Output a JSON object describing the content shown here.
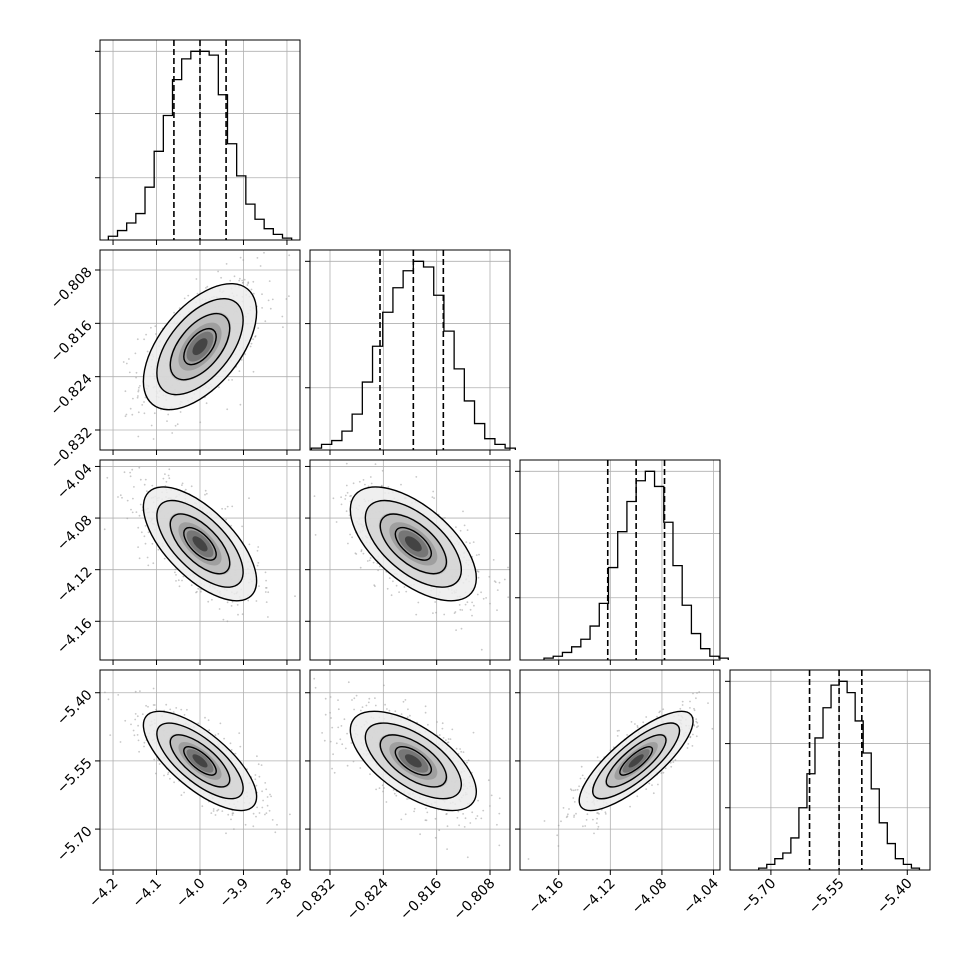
{
  "chart_data": {
    "type": "corner",
    "title": "",
    "parameters": [
      {
        "index": 0,
        "name": "",
        "range": [
          -4.23,
          -3.77
        ],
        "mean": -4.0,
        "sigma": 0.062,
        "quantiles": [
          -4.06,
          -4.0,
          -3.94
        ],
        "ticks": [
          -4.2,
          -4.1,
          -4.0,
          -3.9,
          -3.8
        ],
        "tick_labels": [
          "−4.2",
          "−4.1",
          "−4.0",
          "−3.9",
          "−3.8"
        ]
      },
      {
        "index": 1,
        "name": "",
        "range": [
          -0.835,
          -0.805
        ],
        "mean": -0.8195,
        "sigma": 0.0045,
        "quantiles": [
          -0.8245,
          -0.8195,
          -0.815
        ],
        "ticks": [
          -0.832,
          -0.824,
          -0.816,
          -0.808
        ],
        "tick_labels": [
          "−0.832",
          "−0.824",
          "−0.816",
          "−0.808"
        ]
      },
      {
        "index": 2,
        "name": "",
        "range": [
          -4.19,
          -4.035
        ],
        "mean": -4.1,
        "sigma": 0.021,
        "quantiles": [
          -4.122,
          -4.1,
          -4.078
        ],
        "ticks": [
          -4.16,
          -4.12,
          -4.08,
          -4.04
        ],
        "tick_labels": [
          "−4.16",
          "−4.12",
          "−4.08",
          "−4.04"
        ]
      },
      {
        "index": 3,
        "name": "",
        "range": [
          -5.79,
          -5.35
        ],
        "mean": -5.55,
        "sigma": 0.052,
        "quantiles": [
          -5.615,
          -5.55,
          -5.5
        ],
        "ticks": [
          -5.7,
          -5.55,
          -5.4
        ],
        "tick_labels": [
          "−5.70",
          "−5.55",
          "−5.40"
        ]
      }
    ],
    "histograms": [
      {
        "param": 0,
        "bins": 20,
        "counts": [
          0.02,
          0.05,
          0.09,
          0.14,
          0.28,
          0.47,
          0.66,
          0.85,
          0.96,
          1.0,
          1.0,
          0.98,
          0.77,
          0.51,
          0.34,
          0.19,
          0.11,
          0.06,
          0.03,
          0.01
        ],
        "y_ticks": [
          0.33,
          0.67,
          1.0
        ]
      },
      {
        "param": 1,
        "bins": 20,
        "counts": [
          0.01,
          0.03,
          0.05,
          0.1,
          0.19,
          0.36,
          0.55,
          0.73,
          0.86,
          0.95,
          1.0,
          0.97,
          0.82,
          0.63,
          0.43,
          0.26,
          0.14,
          0.06,
          0.03,
          0.01
        ],
        "y_ticks": [
          0.33,
          0.67,
          1.0
        ]
      },
      {
        "param": 2,
        "bins": 20,
        "counts": [
          0.01,
          0.02,
          0.04,
          0.07,
          0.11,
          0.18,
          0.3,
          0.49,
          0.68,
          0.84,
          0.95,
          1.0,
          0.92,
          0.73,
          0.5,
          0.29,
          0.14,
          0.06,
          0.02,
          0.01
        ],
        "y_ticks": [
          0.33,
          0.67,
          1.0
        ]
      },
      {
        "param": 3,
        "bins": 20,
        "counts": [
          0.01,
          0.03,
          0.06,
          0.09,
          0.17,
          0.33,
          0.51,
          0.7,
          0.86,
          0.98,
          1.0,
          0.94,
          0.79,
          0.62,
          0.43,
          0.25,
          0.14,
          0.06,
          0.03,
          0.01
        ],
        "y_ticks": [
          0.33,
          0.67,
          1.0
        ]
      }
    ],
    "pairs": [
      {
        "x_param": 0,
        "y_param": 1,
        "correlation": 0.55
      },
      {
        "x_param": 0,
        "y_param": 2,
        "correlation": -0.65
      },
      {
        "x_param": 1,
        "y_param": 2,
        "correlation": -0.6
      },
      {
        "x_param": 0,
        "y_param": 3,
        "correlation": -0.72
      },
      {
        "x_param": 1,
        "y_param": 3,
        "correlation": -0.62
      },
      {
        "x_param": 2,
        "y_param": 3,
        "correlation": 0.8
      }
    ],
    "contour_levels_sigma": [
      0.5,
      1.0,
      1.5,
      2.0
    ],
    "scatter_points_per_panel": 700,
    "grid": true,
    "colors": {
      "axes": "#000000",
      "grid": "#b0b0b0",
      "scatter": "#9a9a9a",
      "density_dark": "#000000"
    }
  }
}
